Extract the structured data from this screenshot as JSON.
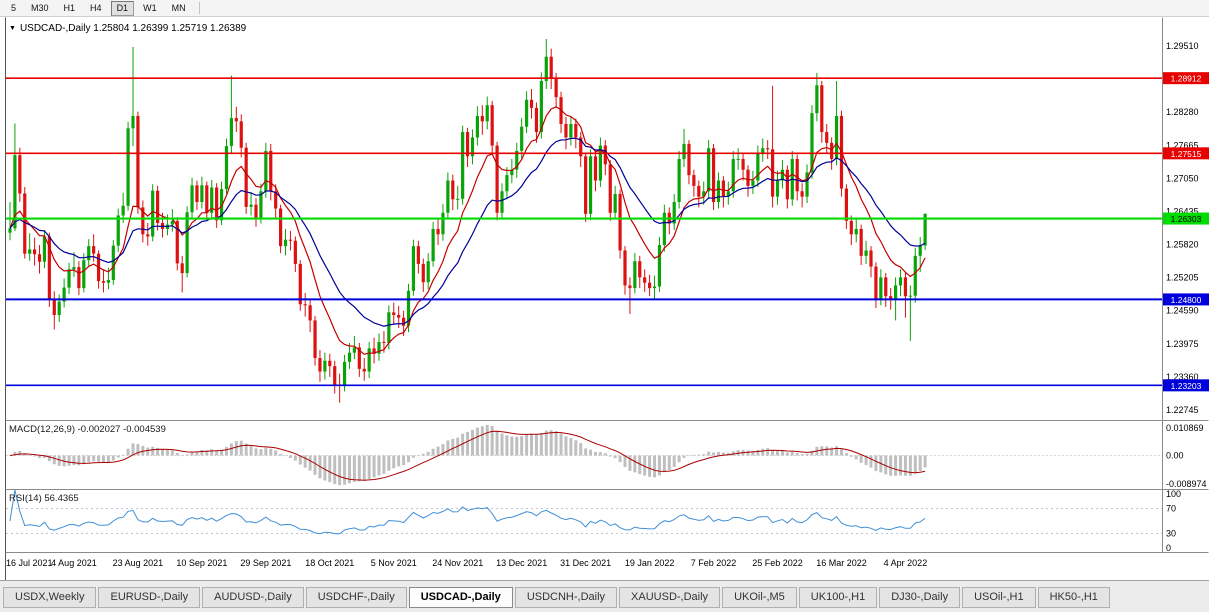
{
  "window": {
    "title_line": "USDCAD-,Daily  1.25804 1.26399 1.25719 1.26389",
    "collapse_arrow": "▼"
  },
  "toolbar": {
    "timeframes": [
      "5",
      "M30",
      "H1",
      "H4",
      "D1",
      "W1",
      "MN"
    ],
    "active": "D1"
  },
  "colors": {
    "up": "#0aa30a",
    "down": "#dd1111",
    "ma_fast": "#c40000",
    "ma_slow": "#000096",
    "macd_hist": "#bfbfbf",
    "macd_signal": "#aa0000",
    "rsi_line": "#3f8fd6",
    "rsi_levels": "#a8b2c8",
    "axis_text": "#000000",
    "separator": "#8a8a8a"
  },
  "indicators": {
    "macd": {
      "label": "MACD(12,26,9) -0.002027 -0.004539",
      "fast": 12,
      "slow": 26,
      "signal": 9,
      "values": [
        -0.002027,
        -0.004539
      ],
      "axis": [
        "0.010869",
        "0.00",
        "-0.008974"
      ]
    },
    "rsi": {
      "label": "RSI(14) 56.4365",
      "period": 14,
      "value": 56.4365,
      "axis": [
        "100",
        "70",
        "30",
        "0"
      ],
      "levels": [
        70,
        30
      ]
    }
  },
  "tabs": [
    {
      "label": "USDX,Weekly",
      "active": false
    },
    {
      "label": "EURUSD-,Daily",
      "active": false
    },
    {
      "label": "AUDUSD-,Daily",
      "active": false
    },
    {
      "label": "USDCHF-,Daily",
      "active": false
    },
    {
      "label": "USDCAD-,Daily",
      "active": true
    },
    {
      "label": "USDCNH-,Daily",
      "active": false
    },
    {
      "label": "XAUUSD-,Daily",
      "active": false
    },
    {
      "label": "UKOil-,M5",
      "active": false
    },
    {
      "label": "UK100-,H1",
      "active": false
    },
    {
      "label": "DJ30-,Daily",
      "active": false
    },
    {
      "label": "USOil-,H1",
      "active": false
    },
    {
      "label": "HK50-,H1",
      "active": false
    }
  ],
  "chart_data": {
    "type": "candlestick",
    "symbol": "USDCAD-",
    "timeframe": "Daily",
    "last_ohlc": {
      "open": 1.25804,
      "high": 1.26399,
      "low": 1.25719,
      "close": 1.26389
    },
    "y_axis_ticks": [
      "1.29510",
      "1.28280",
      "1.27665",
      "1.27050",
      "1.26435",
      "1.25820",
      "1.25205",
      "1.24590",
      "1.23975",
      "1.23360",
      "1.22745"
    ],
    "x_labels": [
      "16 Jul 2021",
      "4 Aug 2021",
      "23 Aug 2021",
      "10 Sep 2021",
      "29 Sep 2021",
      "18 Oct 2021",
      "5 Nov 2021",
      "24 Nov 2021",
      "13 Dec 2021",
      "31 Dec 2021",
      "19 Jan 2022",
      "7 Feb 2022",
      "25 Feb 2022",
      "16 Mar 2022",
      "4 Apr 2022"
    ],
    "label_every_n_bars": 13,
    "horizontal_levels": [
      {
        "value": 1.28912,
        "label": "1.28912",
        "color": "#e80000",
        "text": "#ffffff",
        "width": 1.6
      },
      {
        "value": 1.27515,
        "label": "1.27515",
        "color": "#e80000",
        "text": "#ffffff",
        "width": 1.6
      },
      {
        "value": 1.26303,
        "label": "1.26303",
        "color": "#00dc00",
        "text": "#000000",
        "width": 2.2
      },
      {
        "value": 1.248,
        "label": "1.24800",
        "color": "#0000dc",
        "text": "#ffffff",
        "width": 2.0
      },
      {
        "value": 1.23203,
        "label": "1.23203",
        "color": "#0000dc",
        "text": "#ffffff",
        "width": 1.6
      }
    ],
    "moving_averages": [
      {
        "period": 10,
        "color": "#c40000"
      },
      {
        "period": 22,
        "color": "#000096"
      }
    ],
    "candles": [
      [
        1.2604,
        1.2661,
        1.259,
        1.2612
      ],
      [
        1.2612,
        1.2807,
        1.2607,
        1.2748
      ],
      [
        1.2748,
        1.2762,
        1.2661,
        1.2677
      ],
      [
        1.2677,
        1.2689,
        1.2556,
        1.2565
      ],
      [
        1.2565,
        1.2603,
        1.2552,
        1.2573
      ],
      [
        1.2573,
        1.2595,
        1.2543,
        1.2564
      ],
      [
        1.2564,
        1.2581,
        1.2528,
        1.255
      ],
      [
        1.255,
        1.2609,
        1.2538,
        1.2597
      ],
      [
        1.2597,
        1.2604,
        1.2466,
        1.2481
      ],
      [
        1.2481,
        1.2495,
        1.2424,
        1.2451
      ],
      [
        1.2451,
        1.2489,
        1.2438,
        1.2476
      ],
      [
        1.2476,
        1.2519,
        1.2465,
        1.2502
      ],
      [
        1.2502,
        1.2548,
        1.249,
        1.2536
      ],
      [
        1.2536,
        1.2568,
        1.2522,
        1.254
      ],
      [
        1.254,
        1.2551,
        1.2488,
        1.2501
      ],
      [
        1.2501,
        1.2566,
        1.2493,
        1.2553
      ],
      [
        1.2553,
        1.2592,
        1.2541,
        1.2579
      ],
      [
        1.2579,
        1.2601,
        1.255,
        1.2565
      ],
      [
        1.2565,
        1.2571,
        1.25,
        1.2514
      ],
      [
        1.2514,
        1.2536,
        1.2493,
        1.2511
      ],
      [
        1.2511,
        1.2539,
        1.2499,
        1.2516
      ],
      [
        1.2516,
        1.259,
        1.2507,
        1.258
      ],
      [
        1.258,
        1.2649,
        1.2568,
        1.2636
      ],
      [
        1.2636,
        1.2678,
        1.2622,
        1.2654
      ],
      [
        1.2654,
        1.281,
        1.2645,
        1.2798
      ],
      [
        1.2798,
        1.2949,
        1.2765,
        1.2821
      ],
      [
        1.2821,
        1.2829,
        1.2639,
        1.2651
      ],
      [
        1.2651,
        1.2664,
        1.2586,
        1.2601
      ],
      [
        1.2601,
        1.2622,
        1.258,
        1.2597
      ],
      [
        1.2597,
        1.2694,
        1.2588,
        1.2682
      ],
      [
        1.2682,
        1.2691,
        1.2608,
        1.2622
      ],
      [
        1.2622,
        1.2641,
        1.2595,
        1.2611
      ],
      [
        1.2611,
        1.2638,
        1.2599,
        1.2619
      ],
      [
        1.2619,
        1.2648,
        1.2606,
        1.2626
      ],
      [
        1.2626,
        1.2633,
        1.2534,
        1.2547
      ],
      [
        1.2547,
        1.2561,
        1.2493,
        1.2529
      ],
      [
        1.2529,
        1.2653,
        1.2521,
        1.2642
      ],
      [
        1.2642,
        1.2706,
        1.263,
        1.2692
      ],
      [
        1.2692,
        1.2701,
        1.2646,
        1.2661
      ],
      [
        1.2661,
        1.2708,
        1.2649,
        1.2692
      ],
      [
        1.2692,
        1.2699,
        1.2627,
        1.2641
      ],
      [
        1.2641,
        1.2702,
        1.2633,
        1.2688
      ],
      [
        1.2688,
        1.2696,
        1.2613,
        1.2627
      ],
      [
        1.2627,
        1.2699,
        1.2618,
        1.2685
      ],
      [
        1.2685,
        1.2779,
        1.2676,
        1.2765
      ],
      [
        1.2765,
        1.2896,
        1.2753,
        1.2817
      ],
      [
        1.2817,
        1.2838,
        1.2791,
        1.2811
      ],
      [
        1.2811,
        1.2824,
        1.2744,
        1.2762
      ],
      [
        1.2762,
        1.2771,
        1.2639,
        1.2652
      ],
      [
        1.2652,
        1.2679,
        1.2636,
        1.2656
      ],
      [
        1.2656,
        1.2668,
        1.2615,
        1.2632
      ],
      [
        1.2632,
        1.2695,
        1.2621,
        1.2681
      ],
      [
        1.2681,
        1.2771,
        1.2669,
        1.2756
      ],
      [
        1.2756,
        1.2769,
        1.2664,
        1.2681
      ],
      [
        1.2681,
        1.2694,
        1.263,
        1.2649
      ],
      [
        1.2649,
        1.2656,
        1.2566,
        1.2579
      ],
      [
        1.2579,
        1.2611,
        1.2562,
        1.2591
      ],
      [
        1.2591,
        1.2607,
        1.2571,
        1.2589
      ],
      [
        1.2589,
        1.2597,
        1.2531,
        1.2546
      ],
      [
        1.2546,
        1.2553,
        1.2459,
        1.2471
      ],
      [
        1.2471,
        1.2492,
        1.2448,
        1.2469
      ],
      [
        1.2469,
        1.2479,
        1.2419,
        1.2441
      ],
      [
        1.2441,
        1.2449,
        1.2357,
        1.2371
      ],
      [
        1.2371,
        1.2386,
        1.2327,
        1.2346
      ],
      [
        1.2346,
        1.2381,
        1.2331,
        1.2366
      ],
      [
        1.2366,
        1.2379,
        1.2336,
        1.2356
      ],
      [
        1.2356,
        1.2366,
        1.2305,
        1.2322
      ],
      [
        1.2322,
        1.2342,
        1.2288,
        1.2319
      ],
      [
        1.2319,
        1.2377,
        1.2309,
        1.2364
      ],
      [
        1.2364,
        1.2399,
        1.2351,
        1.2381
      ],
      [
        1.2381,
        1.2412,
        1.2369,
        1.2391
      ],
      [
        1.2391,
        1.2399,
        1.2336,
        1.2351
      ],
      [
        1.2351,
        1.2371,
        1.2329,
        1.2346
      ],
      [
        1.2346,
        1.2401,
        1.2334,
        1.2389
      ],
      [
        1.2389,
        1.2409,
        1.2361,
        1.2379
      ],
      [
        1.2379,
        1.2417,
        1.2366,
        1.2401
      ],
      [
        1.2401,
        1.2421,
        1.2381,
        1.2399
      ],
      [
        1.2399,
        1.2469,
        1.2387,
        1.2456
      ],
      [
        1.2456,
        1.2474,
        1.2433,
        1.2451
      ],
      [
        1.2451,
        1.2468,
        1.2427,
        1.2446
      ],
      [
        1.2446,
        1.2459,
        1.2412,
        1.2431
      ],
      [
        1.2431,
        1.2509,
        1.2419,
        1.2496
      ],
      [
        1.2496,
        1.2591,
        1.2487,
        1.2579
      ],
      [
        1.2579,
        1.2589,
        1.2528,
        1.2546
      ],
      [
        1.2546,
        1.2556,
        1.2494,
        1.2512
      ],
      [
        1.2512,
        1.2566,
        1.2499,
        1.2551
      ],
      [
        1.2551,
        1.2624,
        1.2541,
        1.2611
      ],
      [
        1.2611,
        1.2631,
        1.2581,
        1.2601
      ],
      [
        1.2601,
        1.2657,
        1.2589,
        1.2641
      ],
      [
        1.2641,
        1.2716,
        1.2629,
        1.2701
      ],
      [
        1.2701,
        1.2712,
        1.2646,
        1.2666
      ],
      [
        1.2666,
        1.2691,
        1.2647,
        1.2667
      ],
      [
        1.2667,
        1.2803,
        1.2656,
        1.2791
      ],
      [
        1.2791,
        1.2799,
        1.2726,
        1.2746
      ],
      [
        1.2746,
        1.2796,
        1.2731,
        1.2781
      ],
      [
        1.2781,
        1.2839,
        1.2766,
        1.2821
      ],
      [
        1.2821,
        1.2841,
        1.2786,
        1.2811
      ],
      [
        1.2811,
        1.2857,
        1.2796,
        1.2841
      ],
      [
        1.2841,
        1.2849,
        1.2749,
        1.2766
      ],
      [
        1.2766,
        1.2773,
        1.2627,
        1.2641
      ],
      [
        1.2641,
        1.2696,
        1.2629,
        1.2681
      ],
      [
        1.2681,
        1.2726,
        1.2666,
        1.2711
      ],
      [
        1.2711,
        1.2741,
        1.2696,
        1.2721
      ],
      [
        1.2721,
        1.2771,
        1.2706,
        1.2756
      ],
      [
        1.2756,
        1.2817,
        1.2741,
        1.2801
      ],
      [
        1.2801,
        1.2867,
        1.2789,
        1.2851
      ],
      [
        1.2851,
        1.2871,
        1.2816,
        1.2836
      ],
      [
        1.2836,
        1.2846,
        1.2771,
        1.2791
      ],
      [
        1.2791,
        1.2902,
        1.2779,
        1.2886
      ],
      [
        1.2886,
        1.2964,
        1.2871,
        1.2931
      ],
      [
        1.2931,
        1.2946,
        1.2871,
        1.2891
      ],
      [
        1.2891,
        1.2901,
        1.2836,
        1.2856
      ],
      [
        1.2856,
        1.2866,
        1.2789,
        1.2806
      ],
      [
        1.2806,
        1.2819,
        1.2759,
        1.2781
      ],
      [
        1.2781,
        1.2821,
        1.2766,
        1.2806
      ],
      [
        1.2806,
        1.2816,
        1.2761,
        1.2781
      ],
      [
        1.2781,
        1.2791,
        1.2726,
        1.2746
      ],
      [
        1.2746,
        1.2753,
        1.2624,
        1.2639
      ],
      [
        1.2639,
        1.2759,
        1.2627,
        1.2746
      ],
      [
        1.2746,
        1.2756,
        1.2681,
        1.2701
      ],
      [
        1.2701,
        1.2781,
        1.2689,
        1.2766
      ],
      [
        1.2766,
        1.2776,
        1.2711,
        1.2731
      ],
      [
        1.2731,
        1.2739,
        1.2626,
        1.2641
      ],
      [
        1.2641,
        1.2691,
        1.2629,
        1.2676
      ],
      [
        1.2676,
        1.2684,
        1.2556,
        1.2571
      ],
      [
        1.2571,
        1.2579,
        1.2489,
        1.2506
      ],
      [
        1.2506,
        1.2521,
        1.2453,
        1.2501
      ],
      [
        1.2501,
        1.2566,
        1.2491,
        1.2551
      ],
      [
        1.2551,
        1.2561,
        1.2501,
        1.2521
      ],
      [
        1.2521,
        1.2536,
        1.2494,
        1.2511
      ],
      [
        1.2511,
        1.2526,
        1.2486,
        1.2501
      ],
      [
        1.2501,
        1.2524,
        1.2481,
        1.2504
      ],
      [
        1.2504,
        1.2596,
        1.2494,
        1.2581
      ],
      [
        1.2581,
        1.2656,
        1.2569,
        1.2641
      ],
      [
        1.2641,
        1.2651,
        1.2601,
        1.2621
      ],
      [
        1.2621,
        1.2676,
        1.2609,
        1.2661
      ],
      [
        1.2661,
        1.2756,
        1.2649,
        1.2741
      ],
      [
        1.2741,
        1.2797,
        1.2726,
        1.2769
      ],
      [
        1.2769,
        1.2776,
        1.2694,
        1.2711
      ],
      [
        1.2711,
        1.2721,
        1.2671,
        1.2691
      ],
      [
        1.2691,
        1.2701,
        1.2651,
        1.2671
      ],
      [
        1.2671,
        1.2699,
        1.2656,
        1.2681
      ],
      [
        1.2681,
        1.2776,
        1.2669,
        1.2761
      ],
      [
        1.2761,
        1.2769,
        1.2646,
        1.2661
      ],
      [
        1.2661,
        1.2716,
        1.2649,
        1.2701
      ],
      [
        1.2701,
        1.2709,
        1.2651,
        1.2671
      ],
      [
        1.2671,
        1.2699,
        1.2656,
        1.2681
      ],
      [
        1.2681,
        1.2756,
        1.2669,
        1.2741
      ],
      [
        1.2741,
        1.2761,
        1.2721,
        1.2741
      ],
      [
        1.2741,
        1.2751,
        1.2701,
        1.2721
      ],
      [
        1.2721,
        1.2729,
        1.2671,
        1.2691
      ],
      [
        1.2691,
        1.2719,
        1.2676,
        1.2701
      ],
      [
        1.2701,
        1.2766,
        1.2689,
        1.2751
      ],
      [
        1.2751,
        1.2779,
        1.2736,
        1.2761
      ],
      [
        1.2761,
        1.2776,
        1.2741,
        1.2759
      ],
      [
        1.2759,
        1.2877,
        1.2651,
        1.2671
      ],
      [
        1.2671,
        1.2719,
        1.2656,
        1.2701
      ],
      [
        1.2701,
        1.2739,
        1.2686,
        1.2721
      ],
      [
        1.2721,
        1.2729,
        1.2649,
        1.2666
      ],
      [
        1.2666,
        1.2756,
        1.2654,
        1.2741
      ],
      [
        1.2741,
        1.2749,
        1.2664,
        1.2681
      ],
      [
        1.2681,
        1.2696,
        1.2651,
        1.2671
      ],
      [
        1.2671,
        1.2731,
        1.2659,
        1.2716
      ],
      [
        1.2716,
        1.2841,
        1.2704,
        1.2826
      ],
      [
        1.2826,
        1.2901,
        1.2811,
        1.2878
      ],
      [
        1.2878,
        1.2886,
        1.2771,
        1.2791
      ],
      [
        1.2791,
        1.2806,
        1.2751,
        1.2771
      ],
      [
        1.2771,
        1.2781,
        1.2721,
        1.2741
      ],
      [
        1.2741,
        1.2886,
        1.2729,
        1.2821
      ],
      [
        1.2821,
        1.2831,
        1.2671,
        1.2686
      ],
      [
        1.2686,
        1.2694,
        1.2611,
        1.2626
      ],
      [
        1.2626,
        1.2636,
        1.2581,
        1.2601
      ],
      [
        1.2601,
        1.2629,
        1.2586,
        1.2611
      ],
      [
        1.2611,
        1.2619,
        1.2544,
        1.2561
      ],
      [
        1.2561,
        1.2589,
        1.2546,
        1.2571
      ],
      [
        1.2571,
        1.2579,
        1.2521,
        1.2541
      ],
      [
        1.2541,
        1.2549,
        1.2464,
        1.2481
      ],
      [
        1.2481,
        1.2536,
        1.2469,
        1.2521
      ],
      [
        1.2521,
        1.2529,
        1.2466,
        1.2486
      ],
      [
        1.2486,
        1.2501,
        1.2461,
        1.2481
      ],
      [
        1.2481,
        1.2521,
        1.2441,
        1.2506
      ],
      [
        1.2506,
        1.2536,
        1.2486,
        1.2521
      ],
      [
        1.2521,
        1.2529,
        1.2446,
        1.2486
      ],
      [
        1.2486,
        1.2506,
        1.2403,
        1.2487
      ],
      [
        1.2487,
        1.2576,
        1.2474,
        1.2561
      ],
      [
        1.2561,
        1.2596,
        1.2531,
        1.2581
      ],
      [
        1.258,
        1.264,
        1.2572,
        1.2639
      ]
    ]
  }
}
